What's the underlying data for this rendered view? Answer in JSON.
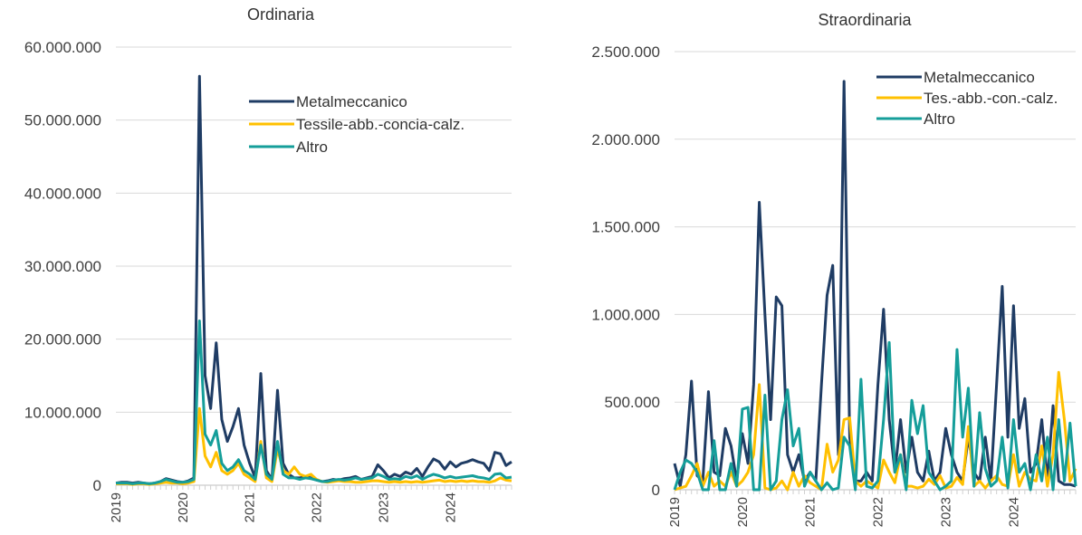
{
  "chart_data": [
    {
      "type": "line",
      "title": "Ordinaria",
      "categories": [
        "2019",
        null,
        null,
        null,
        null,
        null,
        null,
        null,
        null,
        null,
        null,
        null,
        "2020",
        null,
        null,
        null,
        null,
        null,
        null,
        null,
        null,
        null,
        null,
        null,
        "2021",
        null,
        null,
        null,
        null,
        null,
        null,
        null,
        null,
        null,
        null,
        null,
        "2022",
        null,
        null,
        null,
        null,
        null,
        null,
        null,
        null,
        null,
        null,
        null,
        "2023",
        null,
        null,
        null,
        null,
        null,
        null,
        null,
        null,
        null,
        null,
        null,
        "2024",
        null,
        null,
        null,
        null,
        null,
        null,
        null,
        null,
        null,
        null,
        null
      ],
      "ylim": [
        0,
        60000000
      ],
      "yticks": [
        0,
        {
          "value": 10000000,
          "label": "10.000.000"
        },
        {
          "value": 20000000,
          "label": "20.000.000"
        },
        {
          "value": 30000000,
          "label": "30.000.000"
        },
        {
          "value": 40000000,
          "label": "40.000.000"
        },
        {
          "value": 50000000,
          "label": "50.000.000"
        },
        {
          "value": 60000000,
          "label": "60.000.000"
        }
      ],
      "grid": true,
      "legend": "top-right",
      "series": [
        {
          "name": "Metalmeccanico",
          "color": "#1f3c64",
          "values": [
            300000,
            400000,
            400000,
            300000,
            400000,
            300000,
            200000,
            300000,
            500000,
            900000,
            700000,
            500000,
            400000,
            600000,
            1000000,
            56000000,
            15000000,
            10500000,
            19500000,
            9000000,
            6000000,
            8000000,
            10500000,
            5500000,
            3000000,
            1000000,
            15300000,
            2000000,
            800000,
            13000000,
            3000000,
            1500000,
            1000000,
            1000000,
            1200000,
            1000000,
            700000,
            500000,
            600000,
            800000,
            700000,
            900000,
            1000000,
            1200000,
            800000,
            1000000,
            1200000,
            2800000,
            2000000,
            1000000,
            1500000,
            1200000,
            1800000,
            1500000,
            2300000,
            1200000,
            2500000,
            3600000,
            3200000,
            2200000,
            3200000,
            2500000,
            3000000,
            3200000,
            3500000,
            3200000,
            3000000,
            2000000,
            4500000,
            4300000,
            2700000,
            3200000
          ]
        },
        {
          "name": "Tessile-abb.-concia-calz.",
          "color": "#ffc000",
          "values": [
            200000,
            200000,
            200000,
            100000,
            200000,
            200000,
            100000,
            200000,
            300000,
            400000,
            300000,
            300000,
            200000,
            300000,
            500000,
            10500000,
            4000000,
            2500000,
            4500000,
            2000000,
            1500000,
            2000000,
            3000000,
            1500000,
            1000000,
            500000,
            6000000,
            1000000,
            500000,
            5000000,
            2000000,
            1500000,
            2500000,
            1500000,
            1200000,
            1500000,
            800000,
            500000,
            400000,
            500000,
            600000,
            500000,
            500000,
            400000,
            400000,
            500000,
            600000,
            600000,
            500000,
            400000,
            500000,
            400000,
            500000,
            400000,
            500000,
            400000,
            500000,
            600000,
            700000,
            500000,
            600000,
            500000,
            600000,
            500000,
            600000,
            500000,
            500000,
            400000,
            600000,
            1000000,
            700000,
            600000
          ]
        },
        {
          "name": "Altro",
          "color": "#159e9a",
          "values": [
            300000,
            300000,
            300000,
            200000,
            300000,
            300000,
            200000,
            300000,
            500000,
            800000,
            600000,
            400000,
            400000,
            500000,
            800000,
            22500000,
            7000000,
            5500000,
            7500000,
            3000000,
            2000000,
            2500000,
            3500000,
            2000000,
            1500000,
            800000,
            5500000,
            1500000,
            800000,
            6000000,
            1500000,
            1000000,
            1000000,
            800000,
            1000000,
            900000,
            700000,
            500000,
            500000,
            700000,
            800000,
            700000,
            800000,
            1000000,
            800000,
            900000,
            1000000,
            1500000,
            1200000,
            800000,
            900000,
            800000,
            1200000,
            1000000,
            1300000,
            800000,
            1200000,
            1500000,
            1300000,
            1000000,
            1200000,
            1000000,
            1100000,
            1200000,
            1300000,
            1100000,
            1000000,
            800000,
            1500000,
            1600000,
            1000000,
            1100000
          ]
        }
      ]
    },
    {
      "type": "line",
      "title": "Straordinaria",
      "categories": [
        "2019",
        null,
        null,
        null,
        null,
        null,
        null,
        null,
        null,
        null,
        null,
        null,
        "2020",
        null,
        null,
        null,
        null,
        null,
        null,
        null,
        null,
        null,
        null,
        null,
        "2021",
        null,
        null,
        null,
        null,
        null,
        null,
        null,
        null,
        null,
        null,
        null,
        "2022",
        null,
        null,
        null,
        null,
        null,
        null,
        null,
        null,
        null,
        null,
        null,
        "2023",
        null,
        null,
        null,
        null,
        null,
        null,
        null,
        null,
        null,
        null,
        null,
        "2024",
        null,
        null,
        null,
        null,
        null,
        null,
        null,
        null,
        null,
        null,
        null
      ],
      "ylim": [
        0,
        2500000
      ],
      "yticks": [
        0,
        {
          "value": 500000,
          "label": "500.000"
        },
        {
          "value": 1000000,
          "label": "1.000.000"
        },
        {
          "value": 1500000,
          "label": "1.500.000"
        },
        {
          "value": 2000000,
          "label": "2.000.000"
        },
        {
          "value": 2500000,
          "label": "2.500.000"
        }
      ],
      "grid": true,
      "legend": "top-right",
      "series": [
        {
          "name": "Metalmeccanico",
          "color": "#1f3c64",
          "values": [
            150000,
            20000,
            200000,
            620000,
            80000,
            50000,
            560000,
            100000,
            80000,
            350000,
            250000,
            50000,
            320000,
            150000,
            600000,
            1640000,
            1000000,
            400000,
            1100000,
            1050000,
            200000,
            100000,
            200000,
            50000,
            100000,
            50000,
            600000,
            1110000,
            1280000,
            200000,
            2330000,
            300000,
            50000,
            50000,
            100000,
            50000,
            600000,
            1030000,
            400000,
            100000,
            400000,
            100000,
            300000,
            100000,
            50000,
            220000,
            50000,
            100000,
            350000,
            200000,
            100000,
            50000,
            300000,
            100000,
            50000,
            300000,
            50000,
            600000,
            1160000,
            300000,
            1050000,
            350000,
            520000,
            100000,
            150000,
            400000,
            50000,
            480000,
            50000,
            30000,
            30000,
            20000
          ]
        },
        {
          "name": "Tes.-abb.-con.-calz.",
          "color": "#ffc000",
          "values": [
            0,
            10000,
            20000,
            80000,
            150000,
            20000,
            100000,
            20000,
            50000,
            20000,
            100000,
            20000,
            50000,
            100000,
            200000,
            600000,
            10000,
            0,
            10000,
            50000,
            0,
            100000,
            20000,
            80000,
            40000,
            20000,
            0,
            260000,
            100000,
            170000,
            400000,
            410000,
            50000,
            20000,
            50000,
            30000,
            10000,
            170000,
            100000,
            40000,
            200000,
            20000,
            20000,
            10000,
            20000,
            60000,
            30000,
            80000,
            10000,
            20000,
            70000,
            30000,
            360000,
            20000,
            50000,
            10000,
            50000,
            80000,
            30000,
            20000,
            200000,
            20000,
            100000,
            60000,
            50000,
            250000,
            20000,
            200000,
            670000,
            400000,
            50000,
            120000
          ]
        },
        {
          "name": "Altro",
          "color": "#159e9a",
          "values": [
            0,
            100000,
            170000,
            150000,
            100000,
            0,
            0,
            280000,
            0,
            0,
            150000,
            20000,
            460000,
            470000,
            0,
            0,
            540000,
            0,
            50000,
            400000,
            570000,
            250000,
            350000,
            20000,
            100000,
            50000,
            0,
            40000,
            0,
            10000,
            300000,
            250000,
            0,
            630000,
            20000,
            10000,
            50000,
            400000,
            840000,
            100000,
            200000,
            0,
            510000,
            320000,
            480000,
            100000,
            50000,
            0,
            20000,
            50000,
            800000,
            300000,
            580000,
            20000,
            440000,
            120000,
            20000,
            50000,
            300000,
            10000,
            400000,
            100000,
            150000,
            0,
            200000,
            50000,
            300000,
            0,
            400000,
            50000,
            380000,
            20000
          ]
        }
      ]
    }
  ]
}
